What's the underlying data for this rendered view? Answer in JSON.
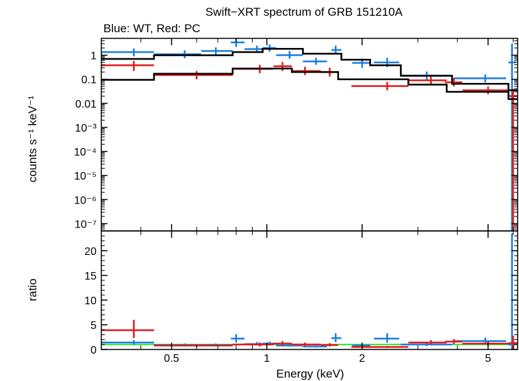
{
  "chart_data": {
    "type": "line",
    "title": "Swift−XRT spectrum of GRB 151210A",
    "subtitle": "Blue: WT, Red: PC",
    "xlabel": "Energy (keV)",
    "x_scale": "log",
    "xlim": [
      0.3,
      6.2
    ],
    "x_ticks": [
      {
        "value": 0.5,
        "label": "0.5"
      },
      {
        "value": 1,
        "label": "1"
      },
      {
        "value": 2,
        "label": "2"
      },
      {
        "value": 5,
        "label": "5"
      }
    ],
    "panels": [
      {
        "name": "spectrum",
        "ylabel": "counts s⁻¹ keV⁻¹",
        "y_scale": "log",
        "ylim": [
          5e-08,
          5
        ],
        "y_ticks": [
          {
            "value": 1,
            "label": "1"
          },
          {
            "value": 0.1,
            "label": "0.1"
          },
          {
            "value": 0.01,
            "label": "0.01"
          },
          {
            "value": 0.001,
            "label": "10⁻³"
          },
          {
            "value": 0.0001,
            "label": "10⁻⁴"
          },
          {
            "value": 1e-05,
            "label": "10⁻⁵"
          },
          {
            "value": 1e-06,
            "label": "10⁻⁶"
          },
          {
            "value": 1e-07,
            "label": "10⁻⁷"
          }
        ],
        "series": [
          {
            "color": "#1a7de0",
            "kind": "data-crosses",
            "points": [
              {
                "x": 0.38,
                "xlo": 0.3,
                "xhi": 0.44,
                "y": 1.35,
                "ylo": 0.9,
                "yhi": 1.9
              },
              {
                "x": 0.55,
                "xlo": 0.44,
                "xhi": 0.62,
                "y": 1.1,
                "ylo": 0.75,
                "yhi": 1.6
              },
              {
                "x": 0.69,
                "xlo": 0.62,
                "xhi": 0.78,
                "y": 1.5,
                "ylo": 1.05,
                "yhi": 2.1
              },
              {
                "x": 0.8,
                "xlo": 0.77,
                "xhi": 0.85,
                "y": 3.4,
                "ylo": 2.2,
                "yhi": 4.8
              },
              {
                "x": 0.93,
                "xlo": 0.85,
                "xhi": 0.98,
                "y": 1.8,
                "ylo": 1.3,
                "yhi": 2.5
              },
              {
                "x": 1.02,
                "xlo": 0.97,
                "xhi": 1.07,
                "y": 2.0,
                "ylo": 1.4,
                "yhi": 2.8
              },
              {
                "x": 1.18,
                "xlo": 1.07,
                "xhi": 1.3,
                "y": 1.0,
                "ylo": 0.72,
                "yhi": 1.5
              },
              {
                "x": 1.43,
                "xlo": 1.3,
                "xhi": 1.55,
                "y": 0.55,
                "ylo": 0.4,
                "yhi": 0.78
              },
              {
                "x": 1.65,
                "xlo": 1.6,
                "xhi": 1.72,
                "y": 1.65,
                "ylo": 1.1,
                "yhi": 2.5
              },
              {
                "x": 2.0,
                "xlo": 1.86,
                "xhi": 2.12,
                "y": 0.48,
                "ylo": 0.3,
                "yhi": 0.72
              },
              {
                "x": 2.4,
                "xlo": 2.18,
                "xhi": 2.62,
                "y": 0.5,
                "ylo": 0.32,
                "yhi": 0.78
              },
              {
                "x": 3.2,
                "xlo": 2.65,
                "xhi": 3.85,
                "y": 0.14,
                "ylo": 0.095,
                "yhi": 0.21
              },
              {
                "x": 4.9,
                "xlo": 3.9,
                "xhi": 5.7,
                "y": 0.11,
                "ylo": 0.075,
                "yhi": 0.16
              },
              {
                "x": 5.95,
                "xlo": 5.8,
                "xhi": 6.1,
                "y": 0.5,
                "ylo": 5e-08,
                "yhi": 3.0
              }
            ]
          },
          {
            "color": "#e01a1a",
            "kind": "data-crosses",
            "points": [
              {
                "x": 0.38,
                "xlo": 0.3,
                "xhi": 0.44,
                "y": 0.38,
                "ylo": 0.22,
                "yhi": 0.58
              },
              {
                "x": 0.6,
                "xlo": 0.44,
                "xhi": 0.78,
                "y": 0.15,
                "ylo": 0.1,
                "yhi": 0.22
              },
              {
                "x": 0.95,
                "xlo": 0.78,
                "xhi": 1.05,
                "y": 0.27,
                "ylo": 0.18,
                "yhi": 0.4
              },
              {
                "x": 1.12,
                "xlo": 1.05,
                "xhi": 1.2,
                "y": 0.35,
                "ylo": 0.22,
                "yhi": 0.52
              },
              {
                "x": 1.32,
                "xlo": 1.2,
                "xhi": 1.48,
                "y": 0.22,
                "ylo": 0.15,
                "yhi": 0.33
              },
              {
                "x": 1.58,
                "xlo": 1.48,
                "xhi": 1.68,
                "y": 0.2,
                "ylo": 0.13,
                "yhi": 0.3
              },
              {
                "x": 2.4,
                "xlo": 1.85,
                "xhi": 2.8,
                "y": 0.052,
                "ylo": 0.035,
                "yhi": 0.078
              },
              {
                "x": 3.3,
                "xlo": 2.8,
                "xhi": 3.7,
                "y": 0.09,
                "ylo": 0.06,
                "yhi": 0.13
              },
              {
                "x": 3.9,
                "xlo": 3.65,
                "xhi": 4.15,
                "y": 0.075,
                "ylo": 0.05,
                "yhi": 0.11
              },
              {
                "x": 5.0,
                "xlo": 4.15,
                "xhi": 5.8,
                "y": 0.035,
                "ylo": 0.024,
                "yhi": 0.05
              },
              {
                "x": 6.0,
                "xlo": 5.8,
                "xhi": 6.2,
                "y": 0.02,
                "ylo": 5e-08,
                "yhi": 0.04
              }
            ]
          },
          {
            "color": "#000000",
            "kind": "model-step",
            "steps": [
              {
                "xlo": 0.3,
                "xhi": 0.44,
                "y": 0.7
              },
              {
                "xlo": 0.44,
                "xhi": 0.78,
                "y": 1.0
              },
              {
                "xlo": 0.78,
                "xhi": 0.97,
                "y": 1.35
              },
              {
                "xlo": 0.97,
                "xhi": 1.3,
                "y": 1.85
              },
              {
                "xlo": 1.3,
                "xhi": 1.72,
                "y": 1.15
              },
              {
                "xlo": 1.72,
                "xhi": 2.12,
                "y": 0.65
              },
              {
                "xlo": 2.12,
                "xhi": 2.65,
                "y": 0.38
              },
              {
                "xlo": 2.65,
                "xhi": 3.85,
                "y": 0.14
              },
              {
                "xlo": 3.85,
                "xhi": 5.8,
                "y": 0.065
              },
              {
                "xlo": 5.8,
                "xhi": 6.2,
                "y": 0.035
              }
            ]
          },
          {
            "color": "#000000",
            "kind": "model-step",
            "steps": [
              {
                "xlo": 0.3,
                "xhi": 0.44,
                "y": 0.095
              },
              {
                "xlo": 0.44,
                "xhi": 0.78,
                "y": 0.17
              },
              {
                "xlo": 0.78,
                "xhi": 1.2,
                "y": 0.28
              },
              {
                "xlo": 1.2,
                "xhi": 1.68,
                "y": 0.2
              },
              {
                "xlo": 1.68,
                "xhi": 2.8,
                "y": 0.1
              },
              {
                "xlo": 2.8,
                "xhi": 3.7,
                "y": 0.06
              },
              {
                "xlo": 3.7,
                "xhi": 5.8,
                "y": 0.03
              },
              {
                "xlo": 5.8,
                "xhi": 6.2,
                "y": 0.015
              }
            ]
          }
        ]
      },
      {
        "name": "ratio",
        "ylabel": "ratio",
        "y_scale": "linear",
        "ylim": [
          0,
          24
        ],
        "y_ticks": [
          {
            "value": 0,
            "label": "0"
          },
          {
            "value": 5,
            "label": "5"
          },
          {
            "value": 10,
            "label": "10"
          },
          {
            "value": 15,
            "label": "15"
          },
          {
            "value": 20,
            "label": "20"
          }
        ],
        "reference_line": {
          "y": 1,
          "color": "#2ee02e"
        },
        "series": [
          {
            "color": "#1a7de0",
            "kind": "data-crosses",
            "points": [
              {
                "x": 0.38,
                "xlo": 0.3,
                "xhi": 0.44,
                "y": 1.4,
                "ylo": 0.9,
                "yhi": 1.9
              },
              {
                "x": 0.55,
                "xlo": 0.44,
                "xhi": 0.62,
                "y": 0.9,
                "ylo": 0.6,
                "yhi": 1.2
              },
              {
                "x": 0.69,
                "xlo": 0.62,
                "xhi": 0.78,
                "y": 0.9,
                "ylo": 0.6,
                "yhi": 1.2
              },
              {
                "x": 0.8,
                "xlo": 0.77,
                "xhi": 0.85,
                "y": 2.2,
                "ylo": 1.4,
                "yhi": 3.1
              },
              {
                "x": 0.93,
                "xlo": 0.85,
                "xhi": 0.98,
                "y": 1.1,
                "ylo": 0.8,
                "yhi": 1.5
              },
              {
                "x": 1.02,
                "xlo": 0.97,
                "xhi": 1.07,
                "y": 1.2,
                "ylo": 0.8,
                "yhi": 1.6
              },
              {
                "x": 1.18,
                "xlo": 1.07,
                "xhi": 1.3,
                "y": 0.8,
                "ylo": 0.6,
                "yhi": 1.1
              },
              {
                "x": 1.43,
                "xlo": 1.3,
                "xhi": 1.55,
                "y": 0.6,
                "ylo": 0.4,
                "yhi": 0.8
              },
              {
                "x": 1.65,
                "xlo": 1.6,
                "xhi": 1.72,
                "y": 2.3,
                "ylo": 1.5,
                "yhi": 3.3
              },
              {
                "x": 2.0,
                "xlo": 1.86,
                "xhi": 2.12,
                "y": 0.8,
                "ylo": 0.5,
                "yhi": 1.1
              },
              {
                "x": 2.4,
                "xlo": 2.18,
                "xhi": 2.62,
                "y": 2.2,
                "ylo": 1.4,
                "yhi": 3.3
              },
              {
                "x": 3.2,
                "xlo": 2.65,
                "xhi": 3.85,
                "y": 1.0,
                "ylo": 0.7,
                "yhi": 1.4
              },
              {
                "x": 4.9,
                "xlo": 3.9,
                "xhi": 5.7,
                "y": 1.7,
                "ylo": 1.1,
                "yhi": 2.4
              },
              {
                "x": 5.95,
                "xlo": 5.8,
                "xhi": 6.1,
                "y": 1.0,
                "ylo": 0.0,
                "yhi": 23.5
              }
            ]
          },
          {
            "color": "#e01a1a",
            "kind": "data-crosses",
            "points": [
              {
                "x": 0.38,
                "xlo": 0.3,
                "xhi": 0.44,
                "y": 3.9,
                "ylo": 2.3,
                "yhi": 6.0
              },
              {
                "x": 0.6,
                "xlo": 0.44,
                "xhi": 0.78,
                "y": 0.8,
                "ylo": 0.5,
                "yhi": 1.1
              },
              {
                "x": 0.95,
                "xlo": 0.78,
                "xhi": 1.05,
                "y": 1.0,
                "ylo": 0.6,
                "yhi": 1.4
              },
              {
                "x": 1.12,
                "xlo": 1.05,
                "xhi": 1.2,
                "y": 1.2,
                "ylo": 0.8,
                "yhi": 1.7
              },
              {
                "x": 1.32,
                "xlo": 1.2,
                "xhi": 1.48,
                "y": 1.0,
                "ylo": 0.7,
                "yhi": 1.4
              },
              {
                "x": 1.58,
                "xlo": 1.48,
                "xhi": 1.68,
                "y": 0.9,
                "ylo": 0.6,
                "yhi": 1.3
              },
              {
                "x": 2.4,
                "xlo": 1.85,
                "xhi": 2.8,
                "y": 0.5,
                "ylo": 0.3,
                "yhi": 0.7
              },
              {
                "x": 3.3,
                "xlo": 2.8,
                "xhi": 3.7,
                "y": 1.4,
                "ylo": 1.0,
                "yhi": 1.9
              },
              {
                "x": 3.9,
                "xlo": 3.65,
                "xhi": 4.15,
                "y": 1.6,
                "ylo": 1.1,
                "yhi": 2.1
              },
              {
                "x": 5.0,
                "xlo": 4.15,
                "xhi": 5.8,
                "y": 1.2,
                "ylo": 0.8,
                "yhi": 1.6
              },
              {
                "x": 6.0,
                "xlo": 5.8,
                "xhi": 6.2,
                "y": 1.3,
                "ylo": 0.0,
                "yhi": 2.8
              }
            ]
          }
        ]
      }
    ]
  }
}
